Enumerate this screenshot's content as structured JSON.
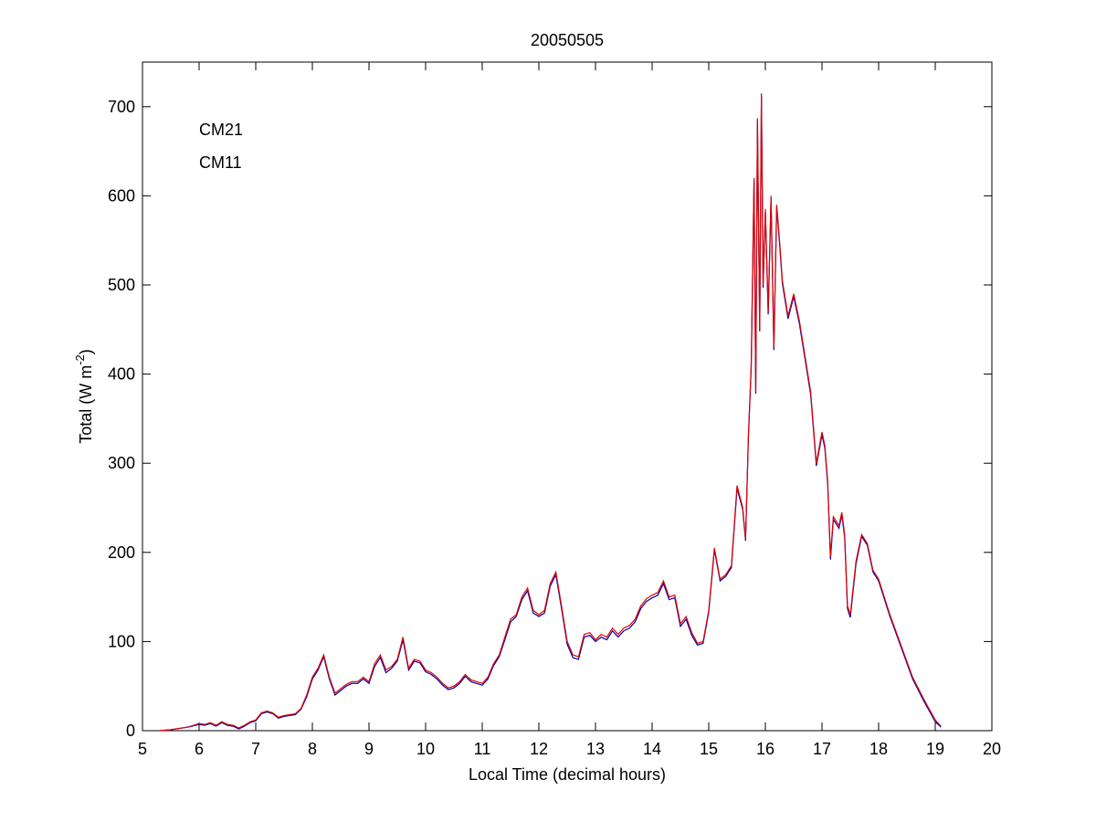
{
  "chart_data": {
    "type": "line",
    "title": "20050505",
    "xlabel": "Local Time (decimal hours)",
    "ylabel_parts": [
      "Total (W m",
      "-2",
      ")"
    ],
    "x": [
      5.3,
      5.5,
      5.8,
      6.0,
      6.1,
      6.2,
      6.3,
      6.4,
      6.5,
      6.6,
      6.7,
      6.8,
      6.9,
      7.0,
      7.1,
      7.2,
      7.3,
      7.4,
      7.5,
      7.6,
      7.7,
      7.8,
      7.9,
      8.0,
      8.1,
      8.2,
      8.3,
      8.4,
      8.5,
      8.6,
      8.7,
      8.8,
      8.9,
      9.0,
      9.1,
      9.2,
      9.3,
      9.4,
      9.5,
      9.6,
      9.7,
      9.8,
      9.9,
      10.0,
      10.1,
      10.2,
      10.3,
      10.4,
      10.5,
      10.6,
      10.7,
      10.8,
      10.9,
      11.0,
      11.1,
      11.2,
      11.3,
      11.4,
      11.5,
      11.6,
      11.7,
      11.8,
      11.9,
      12.0,
      12.1,
      12.2,
      12.3,
      12.4,
      12.5,
      12.6,
      12.7,
      12.8,
      12.9,
      13.0,
      13.1,
      13.2,
      13.3,
      13.4,
      13.5,
      13.6,
      13.7,
      13.8,
      13.9,
      14.0,
      14.1,
      14.2,
      14.3,
      14.4,
      14.5,
      14.6,
      14.7,
      14.8,
      14.9,
      15.0,
      15.1,
      15.2,
      15.3,
      15.4,
      15.5,
      15.6,
      15.65,
      15.7,
      15.75,
      15.8,
      15.83,
      15.86,
      15.9,
      15.93,
      15.96,
      16.0,
      16.05,
      16.1,
      16.15,
      16.2,
      16.25,
      16.3,
      16.4,
      16.5,
      16.6,
      16.7,
      16.8,
      16.9,
      17.0,
      17.05,
      17.1,
      17.15,
      17.2,
      17.3,
      17.35,
      17.4,
      17.45,
      17.5,
      17.6,
      17.7,
      17.8,
      17.9,
      18.0,
      18.2,
      18.4,
      18.6,
      18.8,
      19.0,
      19.1
    ],
    "series": [
      {
        "name": "CM21",
        "color": "#0000b0",
        "values": [
          0,
          1,
          4,
          7,
          6,
          8,
          5,
          9,
          6,
          5,
          2,
          5,
          9,
          11,
          19,
          21,
          19,
          14,
          16,
          17,
          18,
          24,
          38,
          58,
          68,
          83,
          58,
          40,
          45,
          50,
          53,
          53,
          58,
          53,
          72,
          82,
          65,
          70,
          78,
          102,
          68,
          78,
          76,
          66,
          63,
          58,
          51,
          46,
          48,
          53,
          61,
          55,
          53,
          51,
          58,
          73,
          83,
          102,
          122,
          128,
          147,
          157,
          132,
          128,
          132,
          162,
          175,
          137,
          97,
          82,
          80,
          105,
          107,
          100,
          105,
          102,
          112,
          105,
          112,
          115,
          122,
          137,
          145,
          149,
          152,
          165,
          147,
          149,
          117,
          125,
          107,
          96,
          98,
          133,
          203,
          168,
          173,
          183,
          272,
          248,
          213,
          328,
          408,
          617,
          378,
          684,
          448,
          712,
          497,
          582,
          467,
          597,
          427,
          587,
          547,
          502,
          462,
          487,
          457,
          417,
          377,
          297,
          332,
          317,
          277,
          192,
          237,
          227,
          242,
          217,
          137,
          127,
          187,
          218,
          208,
          178,
          168,
          128,
          93,
          58,
          33,
          10,
          4
        ]
      },
      {
        "name": "CM11",
        "color": "#e00000",
        "values": [
          0,
          1,
          4,
          8,
          7,
          9,
          6,
          10,
          7,
          6,
          3,
          6,
          10,
          12,
          20,
          22,
          20,
          15,
          17,
          18,
          19,
          25,
          40,
          60,
          70,
          85,
          60,
          42,
          47,
          52,
          55,
          55,
          60,
          55,
          75,
          85,
          68,
          72,
          80,
          105,
          70,
          80,
          78,
          68,
          65,
          60,
          53,
          48,
          50,
          55,
          63,
          57,
          55,
          53,
          60,
          75,
          85,
          105,
          125,
          130,
          150,
          160,
          135,
          130,
          135,
          165,
          178,
          140,
          100,
          85,
          83,
          108,
          110,
          102,
          108,
          105,
          115,
          108,
          115,
          118,
          125,
          140,
          148,
          152,
          155,
          168,
          150,
          152,
          120,
          128,
          110,
          98,
          100,
          135,
          205,
          170,
          175,
          185,
          275,
          250,
          215,
          330,
          410,
          620,
          380,
          687,
          450,
          715,
          500,
          585,
          470,
          600,
          430,
          590,
          550,
          505,
          465,
          490,
          460,
          420,
          380,
          300,
          335,
          320,
          280,
          195,
          240,
          230,
          245,
          220,
          140,
          130,
          190,
          220,
          210,
          180,
          170,
          130,
          95,
          60,
          35,
          12,
          5
        ]
      }
    ],
    "xlim": [
      5,
      20
    ],
    "ylim": [
      0,
      750
    ],
    "xticks": [
      5,
      6,
      7,
      8,
      9,
      10,
      11,
      12,
      13,
      14,
      15,
      16,
      17,
      18,
      19,
      20
    ],
    "yticks": [
      0,
      100,
      200,
      300,
      400,
      500,
      600,
      700
    ],
    "grid": false,
    "legend": "upper left"
  }
}
